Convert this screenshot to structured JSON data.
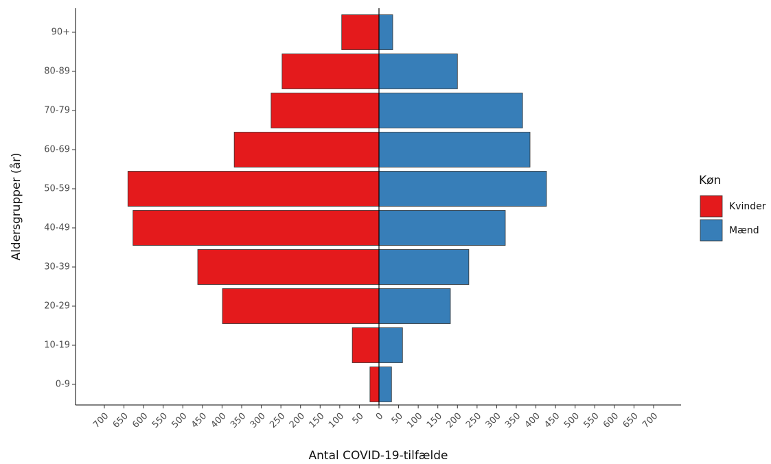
{
  "chart_data": {
    "type": "pyramid",
    "xlabel": "Antal COVID-19-tilfælde",
    "ylabel": "Aldersgrupper (år)",
    "legend_title": "Køn",
    "legend_position": "right",
    "categories": [
      "0-9",
      "10-19",
      "20-29",
      "30-39",
      "40-49",
      "50-59",
      "60-69",
      "70-79",
      "80-89",
      "90+"
    ],
    "series": [
      {
        "name": "Kvinder",
        "color": "#e41a1c",
        "values": [
          -23,
          -68,
          -399,
          -462,
          -627,
          -640,
          -369,
          -275,
          -247,
          -95
        ]
      },
      {
        "name": "Mænd",
        "color": "#377eb8",
        "values": [
          32,
          60,
          182,
          229,
          322,
          427,
          385,
          366,
          200,
          35
        ]
      }
    ],
    "xlim": [
      -773.5,
      770
    ],
    "xticks": [
      {
        "value": -700,
        "label": "700"
      },
      {
        "value": -650,
        "label": "650"
      },
      {
        "value": -600,
        "label": "600"
      },
      {
        "value": -550,
        "label": "550"
      },
      {
        "value": -500,
        "label": "500"
      },
      {
        "value": -450,
        "label": "450"
      },
      {
        "value": -400,
        "label": "400"
      },
      {
        "value": -350,
        "label": "350"
      },
      {
        "value": -300,
        "label": "300"
      },
      {
        "value": -250,
        "label": "250"
      },
      {
        "value": -200,
        "label": "200"
      },
      {
        "value": -150,
        "label": "150"
      },
      {
        "value": -100,
        "label": "100"
      },
      {
        "value": -50,
        "label": "50"
      },
      0,
      50,
      100,
      150,
      200,
      250,
      300,
      350,
      400,
      450,
      500,
      550,
      600,
      650,
      700
    ]
  }
}
